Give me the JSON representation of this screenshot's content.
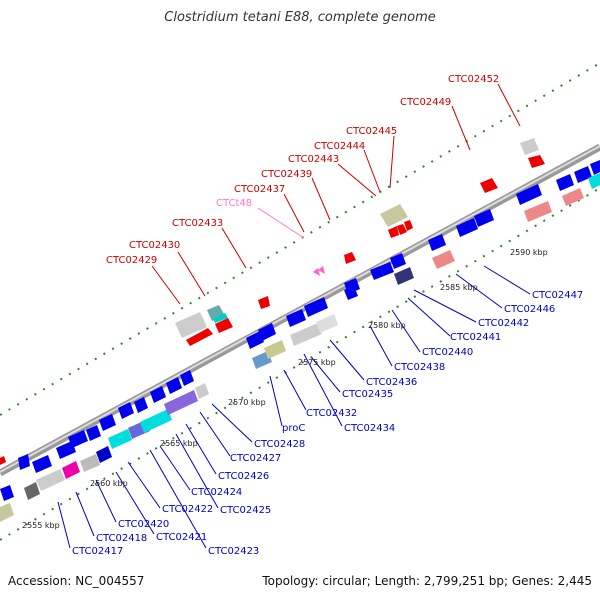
{
  "title": "Clostridium tetani E88, complete genome",
  "footer": {
    "accession": "Accession: NC_004557",
    "summary": "Topology: circular; Length: 2,799,251 bp; Genes: 2,445"
  },
  "scale_labels": [
    "2555 kbp",
    "2560 kbp",
    "2565 kbp",
    "2570 kbp",
    "2575 kbp",
    "2580 kbp",
    "2585 kbp",
    "2590 kbp"
  ],
  "red_labels": [
    "CTC02429",
    "CTC02430",
    "CTC02433",
    "CTC02437",
    "CTC02439",
    "CTC02443",
    "CTC02444",
    "CTC02445",
    "CTC02449",
    "CTC02452"
  ],
  "pink_labels": [
    "CTCt48"
  ],
  "blue_labels": [
    "CTC02417",
    "CTC02418",
    "CTC02420",
    "CTC02421",
    "CTC02422",
    "CTC02423",
    "CTC02424",
    "CTC02425",
    "CTC02426",
    "CTC02427",
    "CTC02428",
    "proC",
    "CTC02432",
    "CTC02434",
    "CTC02435",
    "CTC02436",
    "CTC02438",
    "CTC02440",
    "CTC02441",
    "CTC02442",
    "CTC02446",
    "CTC02447"
  ],
  "colors": {
    "backbone": "#888888",
    "forward_gene": "#ff0000",
    "reverse_gene": "#0000ee",
    "trna": "#ff66cc",
    "pseudo": "#cccccc"
  }
}
